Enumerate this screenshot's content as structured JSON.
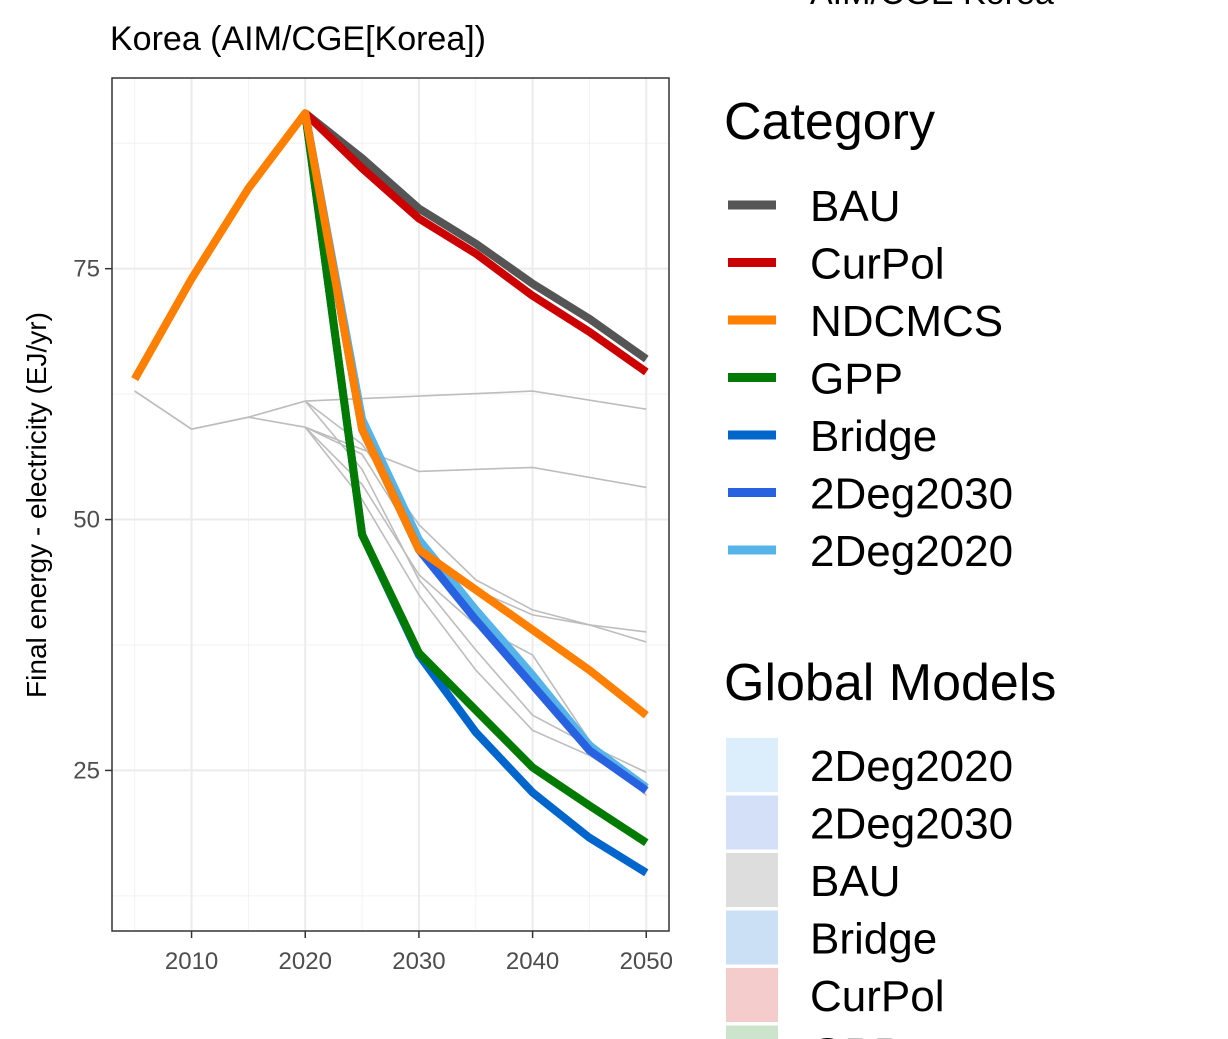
{
  "chart_data": {
    "type": "line",
    "title": "Korea (AIM/CGE[Korea])",
    "top_right_text": "AIM/CGE Korea",
    "ylabel": "Final energy - electricity (EJ/yr)",
    "xlabel": "",
    "xlim": [
      2003,
      2052
    ],
    "ylim": [
      9,
      94
    ],
    "x_ticks": [
      2010,
      2020,
      2030,
      2040,
      2050
    ],
    "y_ticks": [
      25,
      50,
      75
    ],
    "grid": true,
    "legend_position": "right",
    "series": [
      {
        "name": "BAU",
        "color": "#555555",
        "x": [
          2020,
          2025,
          2030,
          2035,
          2040,
          2045,
          2050
        ],
        "values": [
          90.5,
          86.0,
          81.0,
          77.5,
          73.5,
          70.0,
          66.0
        ]
      },
      {
        "name": "CurPol",
        "color": "#cc0000",
        "x": [
          2020,
          2025,
          2030,
          2035,
          2040,
          2045,
          2050
        ],
        "values": [
          90.5,
          85.0,
          80.0,
          76.5,
          72.3,
          68.7,
          64.7
        ]
      },
      {
        "name": "2Deg2020",
        "color": "#56b4e9",
        "x": [
          2020,
          2025,
          2030,
          2035,
          2040,
          2045,
          2050
        ],
        "values": [
          90.5,
          60.0,
          48.0,
          41.0,
          34.5,
          27.5,
          23.3
        ]
      },
      {
        "name": "2Deg2030",
        "color": "#2962e0",
        "x": [
          2020,
          2025,
          2030,
          2035,
          2040,
          2045,
          2050
        ],
        "values": [
          90.5,
          59.0,
          47.0,
          40.0,
          33.5,
          27.0,
          23.0
        ]
      },
      {
        "name": "Bridge",
        "color": "#0066cc",
        "x": [
          2020,
          2025,
          2030,
          2035,
          2040,
          2045,
          2050
        ],
        "values": [
          90.5,
          48.5,
          36.5,
          28.8,
          22.8,
          18.3,
          14.8
        ]
      },
      {
        "name": "GPP",
        "color": "#007a00",
        "x": [
          2020,
          2025,
          2030,
          2035,
          2040,
          2045,
          2050
        ],
        "values": [
          90.5,
          48.5,
          36.7,
          31.0,
          25.3,
          21.5,
          17.8
        ]
      },
      {
        "name": "NDCMCS",
        "color": "#ff7f00",
        "x": [
          2005,
          2010,
          2015,
          2020,
          2025,
          2030,
          2035,
          2040,
          2045,
          2050
        ],
        "values": [
          64.0,
          74.0,
          83.0,
          90.5,
          59.0,
          47.0,
          43.0,
          39.0,
          35.0,
          30.5
        ]
      }
    ],
    "global_model_lines": [
      {
        "x": [
          2005,
          2010,
          2015,
          2020,
          2030,
          2040,
          2050
        ],
        "values": [
          62.8,
          59.0,
          60.2,
          61.8,
          62.3,
          62.8,
          61.0
        ]
      },
      {
        "x": [
          2005,
          2010,
          2015,
          2020,
          2030,
          2040,
          2050
        ],
        "values": [
          62.8,
          59.0,
          60.2,
          59.2,
          54.8,
          55.2,
          53.2
        ]
      },
      {
        "x": [
          2020,
          2025,
          2030,
          2035,
          2040,
          2045,
          2050
        ],
        "values": [
          61.8,
          57.5,
          49.5,
          44.0,
          41.0,
          39.5,
          38.8
        ]
      },
      {
        "x": [
          2020,
          2025,
          2030,
          2035,
          2040,
          2045,
          2050
        ],
        "values": [
          59.2,
          56.5,
          47.5,
          43.0,
          40.5,
          39.5,
          37.8
        ]
      },
      {
        "x": [
          2020,
          2025,
          2030,
          2035,
          2040,
          2045,
          2050
        ],
        "values": [
          61.8,
          55.0,
          44.0,
          37.0,
          30.5,
          27.5,
          24.8
        ]
      },
      {
        "x": [
          2020,
          2025,
          2030,
          2035,
          2040,
          2045,
          2050
        ],
        "values": [
          59.2,
          52.0,
          42.5,
          35.0,
          29.0,
          26.5,
          23.0
        ]
      },
      {
        "x": [
          2020,
          2025,
          2030,
          2035,
          2040,
          2045,
          2050
        ],
        "values": [
          59.2,
          53.5,
          44.5,
          39.5,
          36.5,
          28.0,
          22.5
        ]
      }
    ],
    "legends": [
      {
        "title": "Category",
        "items": [
          {
            "label": "BAU",
            "color": "#555555"
          },
          {
            "label": "CurPol",
            "color": "#cc0000"
          },
          {
            "label": "NDCMCS",
            "color": "#ff7f00"
          },
          {
            "label": "GPP",
            "color": "#007a00"
          },
          {
            "label": "Bridge",
            "color": "#0066cc"
          },
          {
            "label": "2Deg2030",
            "color": "#2962e0"
          },
          {
            "label": "2Deg2020",
            "color": "#56b4e9"
          }
        ]
      },
      {
        "title": "Global Models",
        "items": [
          {
            "label": "2Deg2020",
            "color": "#dcedfb"
          },
          {
            "label": "2Deg2030",
            "color": "#d4dff8"
          },
          {
            "label": "BAU",
            "color": "#dddddd"
          },
          {
            "label": "Bridge",
            "color": "#cce0f5"
          },
          {
            "label": "CurPol",
            "color": "#f5cccc"
          },
          {
            "label": "GPP",
            "color": "#cce4cc"
          }
        ]
      }
    ]
  }
}
